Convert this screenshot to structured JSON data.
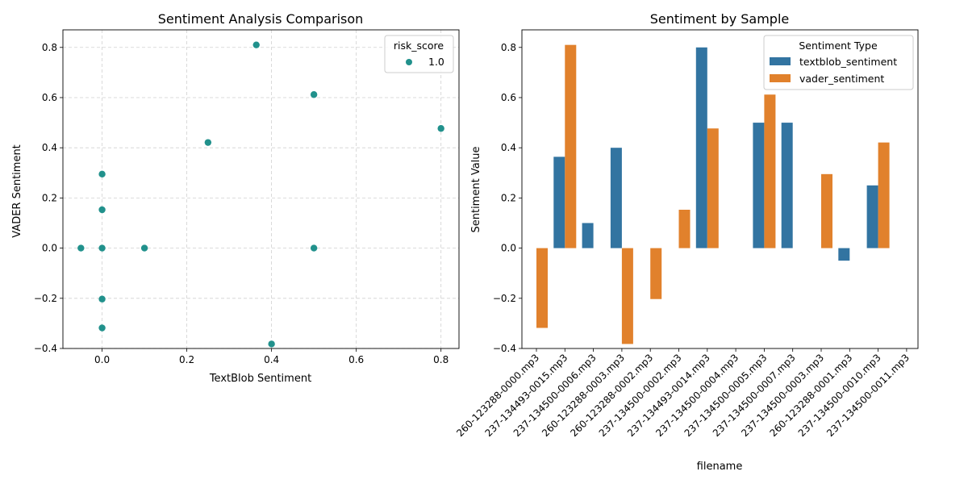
{
  "chart_data": [
    {
      "type": "scatter",
      "title": "Sentiment Analysis Comparison",
      "xlabel": "TextBlob Sentiment",
      "ylabel": "VADER Sentiment",
      "xlim": [
        -0.0925,
        0.8425
      ],
      "ylim": [
        -0.4,
        0.87
      ],
      "xticks": [
        "0.0",
        "0.2",
        "0.4",
        "0.6",
        "0.8"
      ],
      "xtick_values": [
        0.0,
        0.2,
        0.4,
        0.6,
        0.8
      ],
      "yticks": [
        "−0.4",
        "−0.2",
        "0.0",
        "0.2",
        "0.4",
        "0.6",
        "0.8"
      ],
      "ytick_values": [
        -0.4,
        -0.2,
        0.0,
        0.2,
        0.4,
        0.6,
        0.8
      ],
      "grid": true,
      "legend": {
        "title": "risk_score",
        "placement": "top-right",
        "entries": [
          "1.0"
        ]
      },
      "color": "#21918c",
      "points": [
        {
          "x": -0.05,
          "y": 0.0
        },
        {
          "x": 0.0,
          "y": 0.0
        },
        {
          "x": 0.0,
          "y": 0.295
        },
        {
          "x": 0.0,
          "y": 0.153
        },
        {
          "x": 0.0,
          "y": -0.203
        },
        {
          "x": 0.0,
          "y": -0.318
        },
        {
          "x": 0.1,
          "y": 0.0
        },
        {
          "x": 0.25,
          "y": 0.421
        },
        {
          "x": 0.364,
          "y": 0.81
        },
        {
          "x": 0.4,
          "y": -0.382
        },
        {
          "x": 0.5,
          "y": 0.612
        },
        {
          "x": 0.5,
          "y": 0.0
        },
        {
          "x": 0.8,
          "y": 0.477
        }
      ]
    },
    {
      "type": "bar",
      "title": "Sentiment by Sample",
      "xlabel": "filename",
      "ylabel": "Sentiment Value",
      "ylim": [
        -0.4,
        0.87
      ],
      "yticks": [
        "−0.4",
        "−0.2",
        "0.0",
        "0.2",
        "0.4",
        "0.6",
        "0.8"
      ],
      "ytick_values": [
        -0.4,
        -0.2,
        0.0,
        0.2,
        0.4,
        0.6,
        0.8
      ],
      "categories": [
        "260-123288-0000.mp3",
        "237-134493-0015.mp3",
        "237-134500-0006.mp3",
        "260-123288-0003.mp3",
        "260-123288-0002.mp3",
        "237-134500-0002.mp3",
        "237-134493-0014.mp3",
        "237-134500-0004.mp3",
        "237-134500-0005.mp3",
        "237-134500-0007.mp3",
        "237-134500-0003.mp3",
        "260-123288-0001.mp3",
        "237-134500-0010.mp3",
        "237-134500-0011.mp3"
      ],
      "series": [
        {
          "name": "textblob_sentiment",
          "color": "#3274a1",
          "values": [
            0.0,
            0.364,
            0.1,
            0.4,
            0.0,
            0.0,
            0.8,
            0.0,
            0.5,
            0.5,
            0.0,
            -0.05,
            0.25,
            0.0
          ]
        },
        {
          "name": "vader_sentiment",
          "color": "#e1812c",
          "values": [
            -0.318,
            0.81,
            0.0,
            -0.382,
            -0.203,
            0.153,
            0.477,
            0.0,
            0.612,
            0.0,
            0.295,
            0.0,
            0.421,
            0.0
          ]
        }
      ],
      "grid": false,
      "legend": {
        "title": "Sentiment Type",
        "placement": "top-right"
      }
    }
  ]
}
